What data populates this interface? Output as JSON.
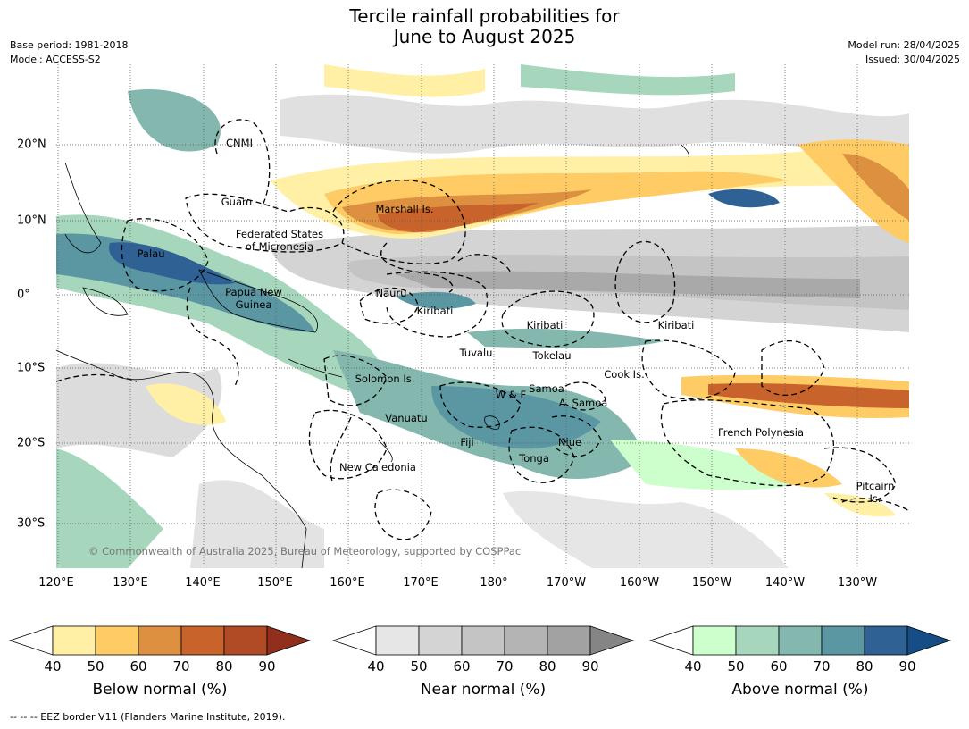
{
  "title_line1": "Tercile rainfall probabilities for",
  "title_line2": "June to August 2025",
  "base_period": "Base period: 1981-2018",
  "model": "Model: ACCESS-S2",
  "model_run": "Model run: 28/04/2025",
  "issued": "Issued: 30/04/2025",
  "copyright": "© Commonwealth of Australia 2025, Bureau of Meteorology, supported by COSPPac",
  "footer": "-- -- -- EEZ border V11 (Flanders Marine Institute, 2019).",
  "lon_labels": [
    "120°E",
    "130°E",
    "140°E",
    "150°E",
    "160°E",
    "170°E",
    "180°",
    "170°W",
    "160°W",
    "150°W",
    "140°W",
    "130°W"
  ],
  "lat_labels": [
    "20°N",
    "10°N",
    "0°",
    "10°S",
    "20°S",
    "30°S"
  ],
  "regions": [
    {
      "name": "CNMI"
    },
    {
      "name": "Guam"
    },
    {
      "name": "Marshall Is."
    },
    {
      "name": "Federated States\nof Micronesia"
    },
    {
      "name": "Palau"
    },
    {
      "name": "Papua New\nGuinea"
    },
    {
      "name": "Nauru"
    },
    {
      "name": "Kiribati"
    },
    {
      "name": "Kiribati"
    },
    {
      "name": "Kiribati"
    },
    {
      "name": "Tuvalu"
    },
    {
      "name": "Tokelau"
    },
    {
      "name": "Cook Is."
    },
    {
      "name": "Solomon Is."
    },
    {
      "name": "Samoa"
    },
    {
      "name": "W & F"
    },
    {
      "name": "A. Samoa"
    },
    {
      "name": "Vanuatu"
    },
    {
      "name": "Fiji"
    },
    {
      "name": "Niue"
    },
    {
      "name": "Tonga"
    },
    {
      "name": "New Caledonia"
    },
    {
      "name": "French Polynesia"
    },
    {
      "name": "Pitcairn\nIs."
    }
  ],
  "colorbars": [
    {
      "label": "Below normal (%)",
      "ticks": [
        "40",
        "50",
        "60",
        "70",
        "80",
        "90"
      ],
      "colors": [
        "#ffffff",
        "#fff0a5",
        "#fecb65",
        "#de9041",
        "#c8632c",
        "#b04b25",
        "#922f1c"
      ]
    },
    {
      "label": "Near normal (%)",
      "ticks": [
        "40",
        "50",
        "60",
        "70",
        "80",
        "90"
      ],
      "colors": [
        "#ffffff",
        "#e6e6e6",
        "#d4d4d4",
        "#c4c4c4",
        "#b4b4b4",
        "#a2a2a2",
        "#858585"
      ]
    },
    {
      "label": "Above normal (%)",
      "ticks": [
        "40",
        "50",
        "60",
        "70",
        "80",
        "90"
      ],
      "colors": [
        "#ffffff",
        "#ccffcc",
        "#a6d7bc",
        "#84b7ae",
        "#5b96a3",
        "#306194",
        "#174d86"
      ]
    }
  ]
}
